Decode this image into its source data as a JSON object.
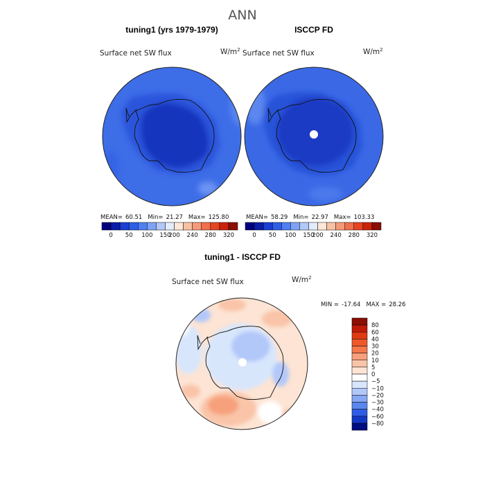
{
  "title": "ANN",
  "chart_data": [
    {
      "type": "heatmap",
      "title": "tuning1 (yrs 1979-1979)",
      "field_label": "Surface net SW flux",
      "units_base": "W/m",
      "units_exp": "2",
      "stats": {
        "mean_label": "MEAN=",
        "mean": "60.51",
        "min_label": "Min=",
        "min": "21.27",
        "max_label": "Max=",
        "max": "125.80"
      },
      "colorbar": {
        "levels": [
          "0",
          "50",
          "100",
          "150",
          "200",
          "240",
          "280",
          "320"
        ],
        "colors": [
          "#00007f",
          "#0a1ca8",
          "#1b3fd2",
          "#2e5ee8",
          "#4f7ff2",
          "#7ea2f6",
          "#b2c8f9",
          "#e3ecfd",
          "#fde7d8",
          "#f9c1a4",
          "#f59a78",
          "#f06f4c",
          "#e64522",
          "#cc240c",
          "#8c0d04"
        ]
      }
    },
    {
      "type": "heatmap",
      "title": "ISCCP FD",
      "field_label": "Surface net SW flux",
      "units_base": "W/m",
      "units_exp": "2",
      "stats": {
        "mean_label": "MEAN=",
        "mean": "58.29",
        "min_label": "Min=",
        "min": "22.97",
        "max_label": "Max=",
        "max": "103.33"
      },
      "colorbar": {
        "levels": [
          "0",
          "50",
          "100",
          "150",
          "200",
          "240",
          "280",
          "320"
        ],
        "colors": [
          "#00007f",
          "#0a1ca8",
          "#1b3fd2",
          "#2e5ee8",
          "#4f7ff2",
          "#7ea2f6",
          "#b2c8f9",
          "#e3ecfd",
          "#fde7d8",
          "#f9c1a4",
          "#f59a78",
          "#f06f4c",
          "#e64522",
          "#cc240c",
          "#8c0d04"
        ]
      }
    },
    {
      "type": "heatmap",
      "title": "tuning1 - ISCCP FD",
      "field_label": "Surface net SW flux",
      "units_base": "W/m",
      "units_exp": "2",
      "stats": {
        "min_label": "MIN =",
        "min": "-17.64",
        "max_label": "MAX =",
        "max": "28.26"
      },
      "colorbar": {
        "levels": [
          "80",
          "60",
          "40",
          "30",
          "20",
          "10",
          "5",
          "0",
          "−5",
          "−10",
          "−20",
          "−30",
          "−40",
          "−60",
          "−80"
        ],
        "colors": [
          "#8c0d04",
          "#c01a08",
          "#e03a12",
          "#f0582a",
          "#f4784c",
          "#f7a07c",
          "#f9c4a8",
          "#fde4d4",
          "#ffffff",
          "#d8e6fc",
          "#b2c8f9",
          "#86a8f5",
          "#5a86ee",
          "#2f5ce6",
          "#1336c4",
          "#000d7f"
        ]
      }
    }
  ]
}
